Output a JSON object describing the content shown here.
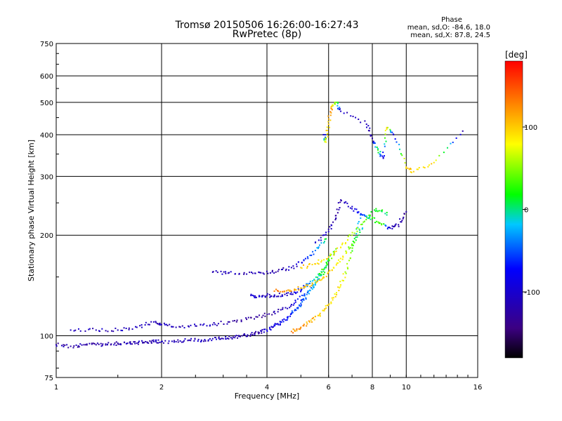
{
  "chart_data": {
    "type": "scatter",
    "title": "Tromsø 20150506 16:26:00-16:27:43",
    "subtitle": "RwPretec (8p)",
    "xlabel": "Frequency [MHz]",
    "ylabel": "Stationary phase Virtual Height [km]",
    "xscale": "log2",
    "yscale": "log",
    "xlim": [
      1,
      16
    ],
    "ylim": [
      75,
      750
    ],
    "x_ticks": [
      1,
      2,
      4,
      6,
      8,
      10,
      16
    ],
    "y_ticks": [
      75,
      100,
      200,
      300,
      400,
      500,
      600,
      750
    ],
    "x_gridlines": [
      2,
      4,
      6,
      8,
      10
    ],
    "y_gridlines": [
      100,
      200,
      300,
      400,
      500,
      600
    ],
    "stats": {
      "heading": "Phase",
      "o_line": "mean, sd,O: -84.6, 18.0",
      "x_line": "mean, sd,X:  87.8, 24.5"
    },
    "colorbar": {
      "label": "[deg]",
      "range": [
        -180,
        180
      ],
      "ticks": [
        -100,
        0,
        100
      ],
      "colors": [
        "#000000",
        "#3c0082",
        "#0000ff",
        "#00c8ff",
        "#00ff00",
        "#ffff00",
        "#ff8000",
        "#ff0000"
      ]
    },
    "series": [
      {
        "trace": "o1",
        "points": [
          [
            1.0,
            94
          ],
          [
            1.1,
            93
          ],
          [
            1.2,
            94
          ],
          [
            1.3,
            94
          ],
          [
            1.4,
            94
          ],
          [
            1.5,
            95
          ],
          [
            1.6,
            95
          ],
          [
            1.7,
            95
          ],
          [
            1.8,
            96
          ],
          [
            1.9,
            96
          ],
          [
            2.0,
            96
          ],
          [
            2.2,
            96
          ],
          [
            2.4,
            97
          ],
          [
            2.6,
            97
          ],
          [
            2.8,
            98
          ],
          [
            3.0,
            98
          ],
          [
            3.2,
            99
          ],
          [
            3.4,
            100
          ],
          [
            3.6,
            101
          ],
          [
            3.8,
            102
          ],
          [
            4.0,
            104
          ],
          [
            4.2,
            107
          ],
          [
            4.4,
            110
          ],
          [
            4.6,
            114
          ],
          [
            4.8,
            119
          ],
          [
            5.0,
            125
          ],
          [
            5.2,
            133
          ],
          [
            5.5,
            142
          ],
          [
            5.8,
            156
          ],
          [
            6.1,
            175
          ]
        ],
        "phase": [
          -120,
          -120,
          -120,
          -120,
          -120,
          -115,
          -115,
          -115,
          -115,
          -115,
          -110,
          -110,
          -110,
          -110,
          -110,
          -110,
          -115,
          -120,
          -120,
          -120,
          -100,
          -90,
          -80,
          -70,
          -60,
          -50,
          -40,
          -20,
          0,
          20
        ]
      },
      {
        "trace": "o2",
        "points": [
          [
            1.1,
            104
          ],
          [
            1.3,
            104
          ],
          [
            1.5,
            104
          ],
          [
            1.7,
            106
          ],
          [
            1.9,
            110
          ],
          [
            2.0,
            108
          ],
          [
            2.2,
            106
          ],
          [
            2.5,
            107
          ],
          [
            2.8,
            108
          ],
          [
            3.1,
            110
          ],
          [
            3.5,
            112
          ],
          [
            3.9,
            115
          ],
          [
            4.3,
            118
          ],
          [
            4.7,
            124
          ],
          [
            5.1,
            132
          ],
          [
            5.5,
            144
          ],
          [
            5.9,
            160
          ],
          [
            6.3,
            182
          ]
        ],
        "phase": [
          -110,
          -110,
          -110,
          -110,
          -110,
          -110,
          -110,
          -110,
          -110,
          -120,
          -130,
          -130,
          -120,
          -100,
          -60,
          -20,
          20,
          40
        ]
      },
      {
        "trace": "o3",
        "points": [
          [
            3.6,
            132
          ],
          [
            3.8,
            131
          ],
          [
            4.0,
            132
          ],
          [
            4.2,
            132
          ],
          [
            4.5,
            133
          ],
          [
            4.8,
            135
          ],
          [
            5.1,
            139
          ],
          [
            5.4,
            146
          ],
          [
            5.8,
            158
          ]
        ],
        "phase": [
          -100,
          -100,
          -110,
          -110,
          -110,
          -90,
          -60,
          -20,
          40
        ]
      },
      {
        "trace": "o4",
        "points": [
          [
            2.8,
            155
          ],
          [
            3.1,
            154
          ],
          [
            3.5,
            153
          ],
          [
            3.9,
            154
          ],
          [
            4.3,
            156
          ],
          [
            4.7,
            160
          ],
          [
            5.1,
            168
          ],
          [
            5.5,
            180
          ],
          [
            5.9,
            195
          ]
        ],
        "phase": [
          -110,
          -110,
          -110,
          -115,
          -120,
          -110,
          -80,
          -40,
          10
        ]
      },
      {
        "trace": "x1",
        "points": [
          [
            4.7,
            103
          ],
          [
            5.0,
            106
          ],
          [
            5.3,
            110
          ],
          [
            5.6,
            115
          ],
          [
            5.9,
            121
          ],
          [
            6.2,
            130
          ],
          [
            6.5,
            142
          ],
          [
            6.8,
            160
          ],
          [
            7.1,
            190
          ],
          [
            7.4,
            230
          ]
        ],
        "phase": [
          130,
          120,
          110,
          100,
          95,
          90,
          85,
          60,
          20,
          -40
        ]
      },
      {
        "trace": "x2",
        "points": [
          [
            4.2,
            136
          ],
          [
            4.6,
            137
          ],
          [
            5.0,
            139
          ],
          [
            5.4,
            143
          ],
          [
            5.8,
            150
          ],
          [
            6.2,
            160
          ],
          [
            6.6,
            172
          ],
          [
            7.0,
            188
          ],
          [
            7.5,
            210
          ]
        ],
        "phase": [
          130,
          120,
          110,
          100,
          95,
          90,
          85,
          40,
          -20
        ]
      },
      {
        "trace": "x3",
        "points": [
          [
            5.0,
            160
          ],
          [
            5.5,
            164
          ],
          [
            6.0,
            172
          ],
          [
            6.5,
            184
          ],
          [
            7.0,
            200
          ],
          [
            7.6,
            220
          ],
          [
            8.2,
            240
          ],
          [
            8.8,
            230
          ]
        ],
        "phase": [
          100,
          95,
          90,
          85,
          60,
          40,
          20,
          0
        ]
      },
      {
        "trace": "f2",
        "points": [
          [
            5.5,
            190
          ],
          [
            6.0,
            205
          ],
          [
            6.3,
            225
          ],
          [
            6.5,
            255
          ],
          [
            7.0,
            240
          ],
          [
            7.5,
            230
          ],
          [
            8.0,
            225
          ],
          [
            8.5,
            215
          ],
          [
            9.0,
            210
          ],
          [
            9.5,
            215
          ],
          [
            10.0,
            235
          ]
        ],
        "phase": [
          -110,
          -110,
          -120,
          -120,
          -100,
          -60,
          20,
          40,
          -110,
          -120,
          -120
        ]
      },
      {
        "trace": "f2-high",
        "points": [
          [
            5.8,
            400
          ],
          [
            5.9,
            380
          ],
          [
            6.0,
            430
          ],
          [
            6.1,
            480
          ],
          [
            6.3,
            500
          ],
          [
            6.5,
            470
          ],
          [
            7.7,
            430
          ],
          [
            8.0,
            390
          ],
          [
            8.3,
            360
          ],
          [
            8.6,
            340
          ],
          [
            8.8,
            420
          ],
          [
            9.2,
            400
          ],
          [
            10.0,
            320
          ],
          [
            10.5,
            310
          ],
          [
            12.0,
            330
          ],
          [
            14.5,
            410
          ]
        ],
        "phase": [
          -100,
          80,
          100,
          120,
          40,
          -110,
          -110,
          -120,
          30,
          -100,
          100,
          -110,
          100,
          100,
          90,
          -120
        ]
      }
    ]
  }
}
